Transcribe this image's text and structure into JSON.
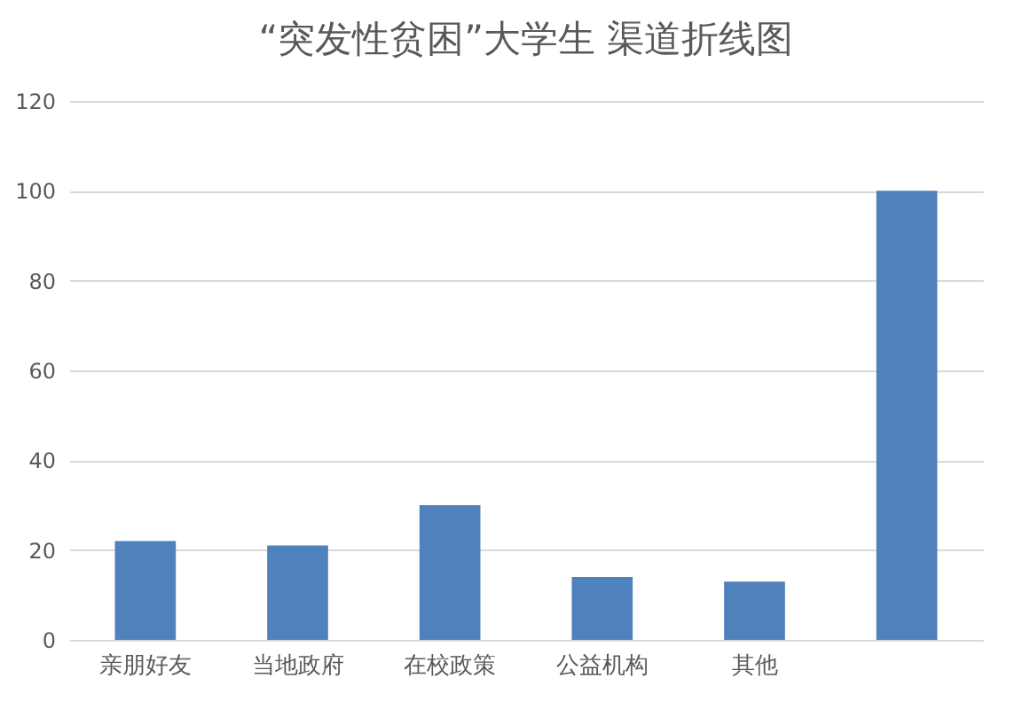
{
  "chart_data": {
    "type": "bar",
    "title": "“突发性贫困”大学生 渠道折线图",
    "categories": [
      "亲朋好友",
      "当地政府",
      "在校政策",
      "公益机构",
      "其他",
      null
    ],
    "values": [
      22,
      21,
      30,
      14,
      13,
      100
    ],
    "color": "#4f81bd",
    "ylim": [
      0,
      120
    ],
    "yticks": [
      0,
      20,
      40,
      60,
      80,
      100,
      120
    ],
    "grid": "y"
  }
}
